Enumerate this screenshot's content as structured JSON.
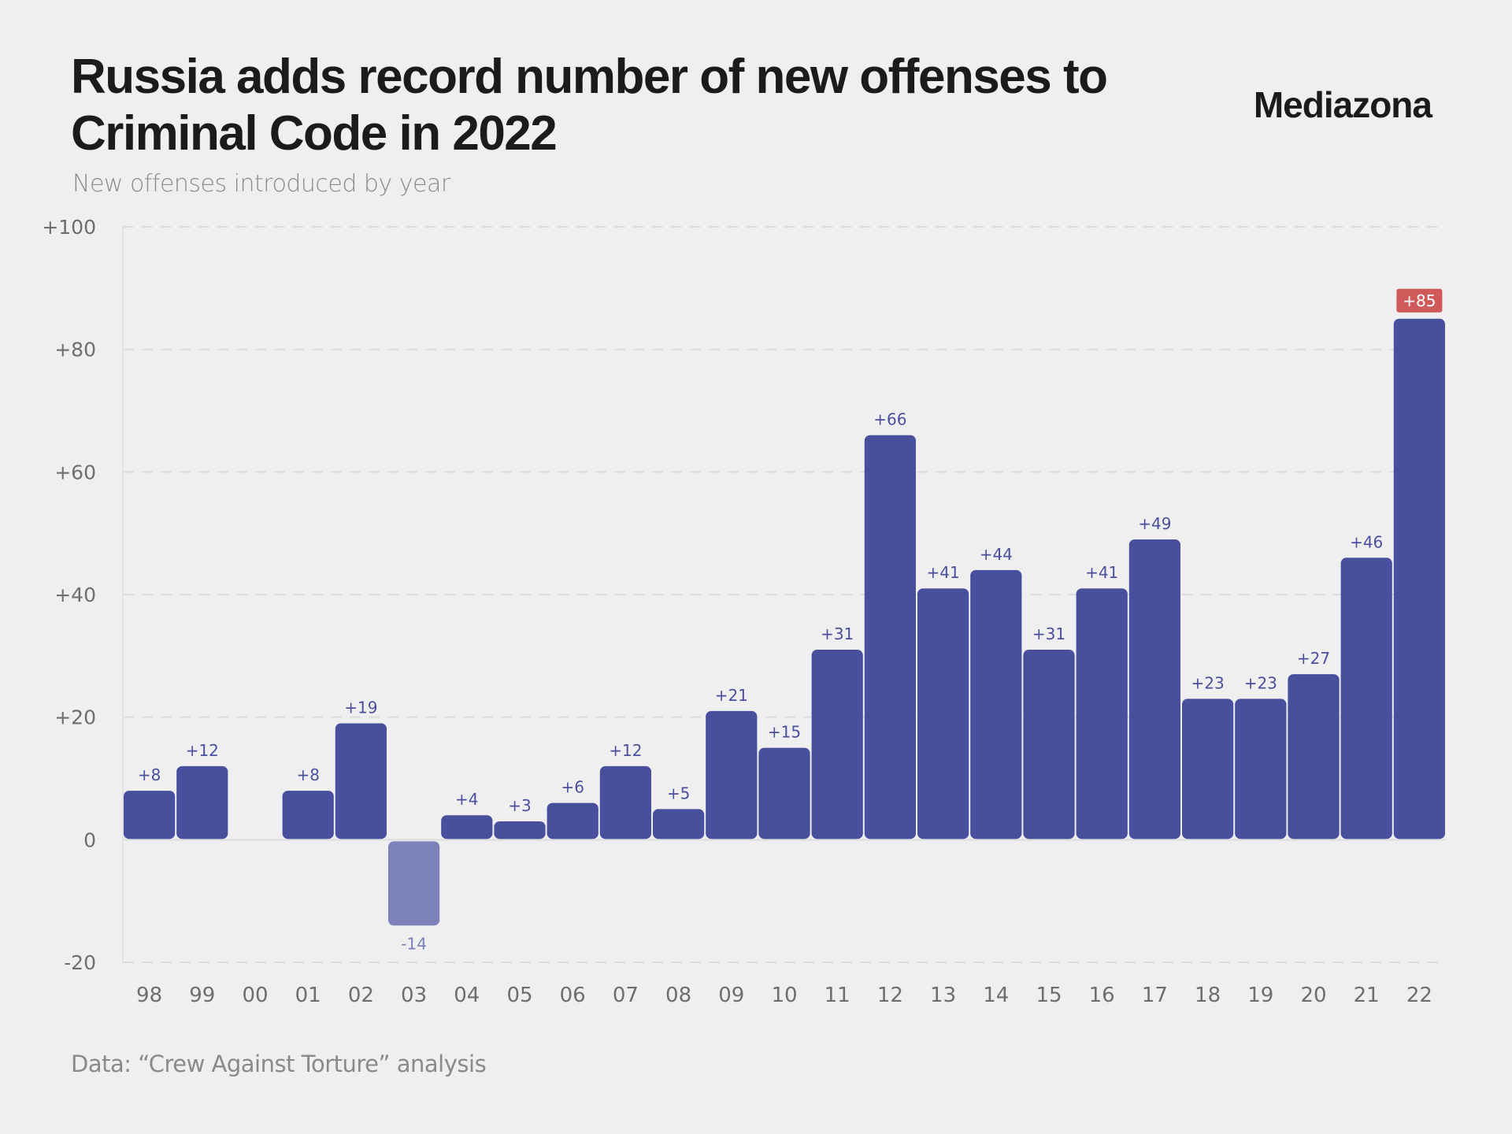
{
  "header": {
    "title": "Russia adds record number of new offenses to Criminal Code in 2022",
    "subtitle": "New offenses introduced by year",
    "brand": "Mediazona"
  },
  "footer": {
    "source": "Data: “Crew Against Torture” analysis"
  },
  "colors": {
    "bar": "#48509e",
    "bar_negative": "#7d82bb",
    "highlight_label_bg": "#d05a5a",
    "grid": "#dcdcdc",
    "background": "#efefef"
  },
  "chart_data": {
    "type": "bar",
    "title": "Russia adds record number of new offenses to Criminal Code in 2022",
    "subtitle": "New offenses introduced by year",
    "xlabel": "",
    "ylabel": "",
    "categories": [
      "98",
      "99",
      "00",
      "01",
      "02",
      "03",
      "04",
      "05",
      "06",
      "07",
      "08",
      "09",
      "10",
      "11",
      "12",
      "13",
      "14",
      "15",
      "16",
      "17",
      "18",
      "19",
      "20",
      "21",
      "22"
    ],
    "values": [
      8,
      12,
      null,
      8,
      19,
      -14,
      4,
      3,
      6,
      12,
      5,
      21,
      15,
      31,
      66,
      41,
      44,
      31,
      41,
      49,
      23,
      23,
      27,
      46,
      85
    ],
    "labels": [
      "+8",
      "+12",
      "",
      "+8",
      "+19",
      "-14",
      "+4",
      "+3",
      "+6",
      "+12",
      "+5",
      "+21",
      "+15",
      "+31",
      "+66",
      "+41",
      "+44",
      "+31",
      "+41",
      "+49",
      "+23",
      "+23",
      "+27",
      "+46",
      "+85"
    ],
    "highlight_category": "22",
    "ylim": [
      -20,
      100
    ],
    "yticks": [
      -20,
      0,
      20,
      40,
      60,
      80,
      100
    ],
    "ytick_labels": [
      "-20",
      "0",
      "+20",
      "+40",
      "+60",
      "+80",
      "+100"
    ],
    "grid": true,
    "legend": "none",
    "source": "Data: “Crew Against Torture” analysis"
  }
}
